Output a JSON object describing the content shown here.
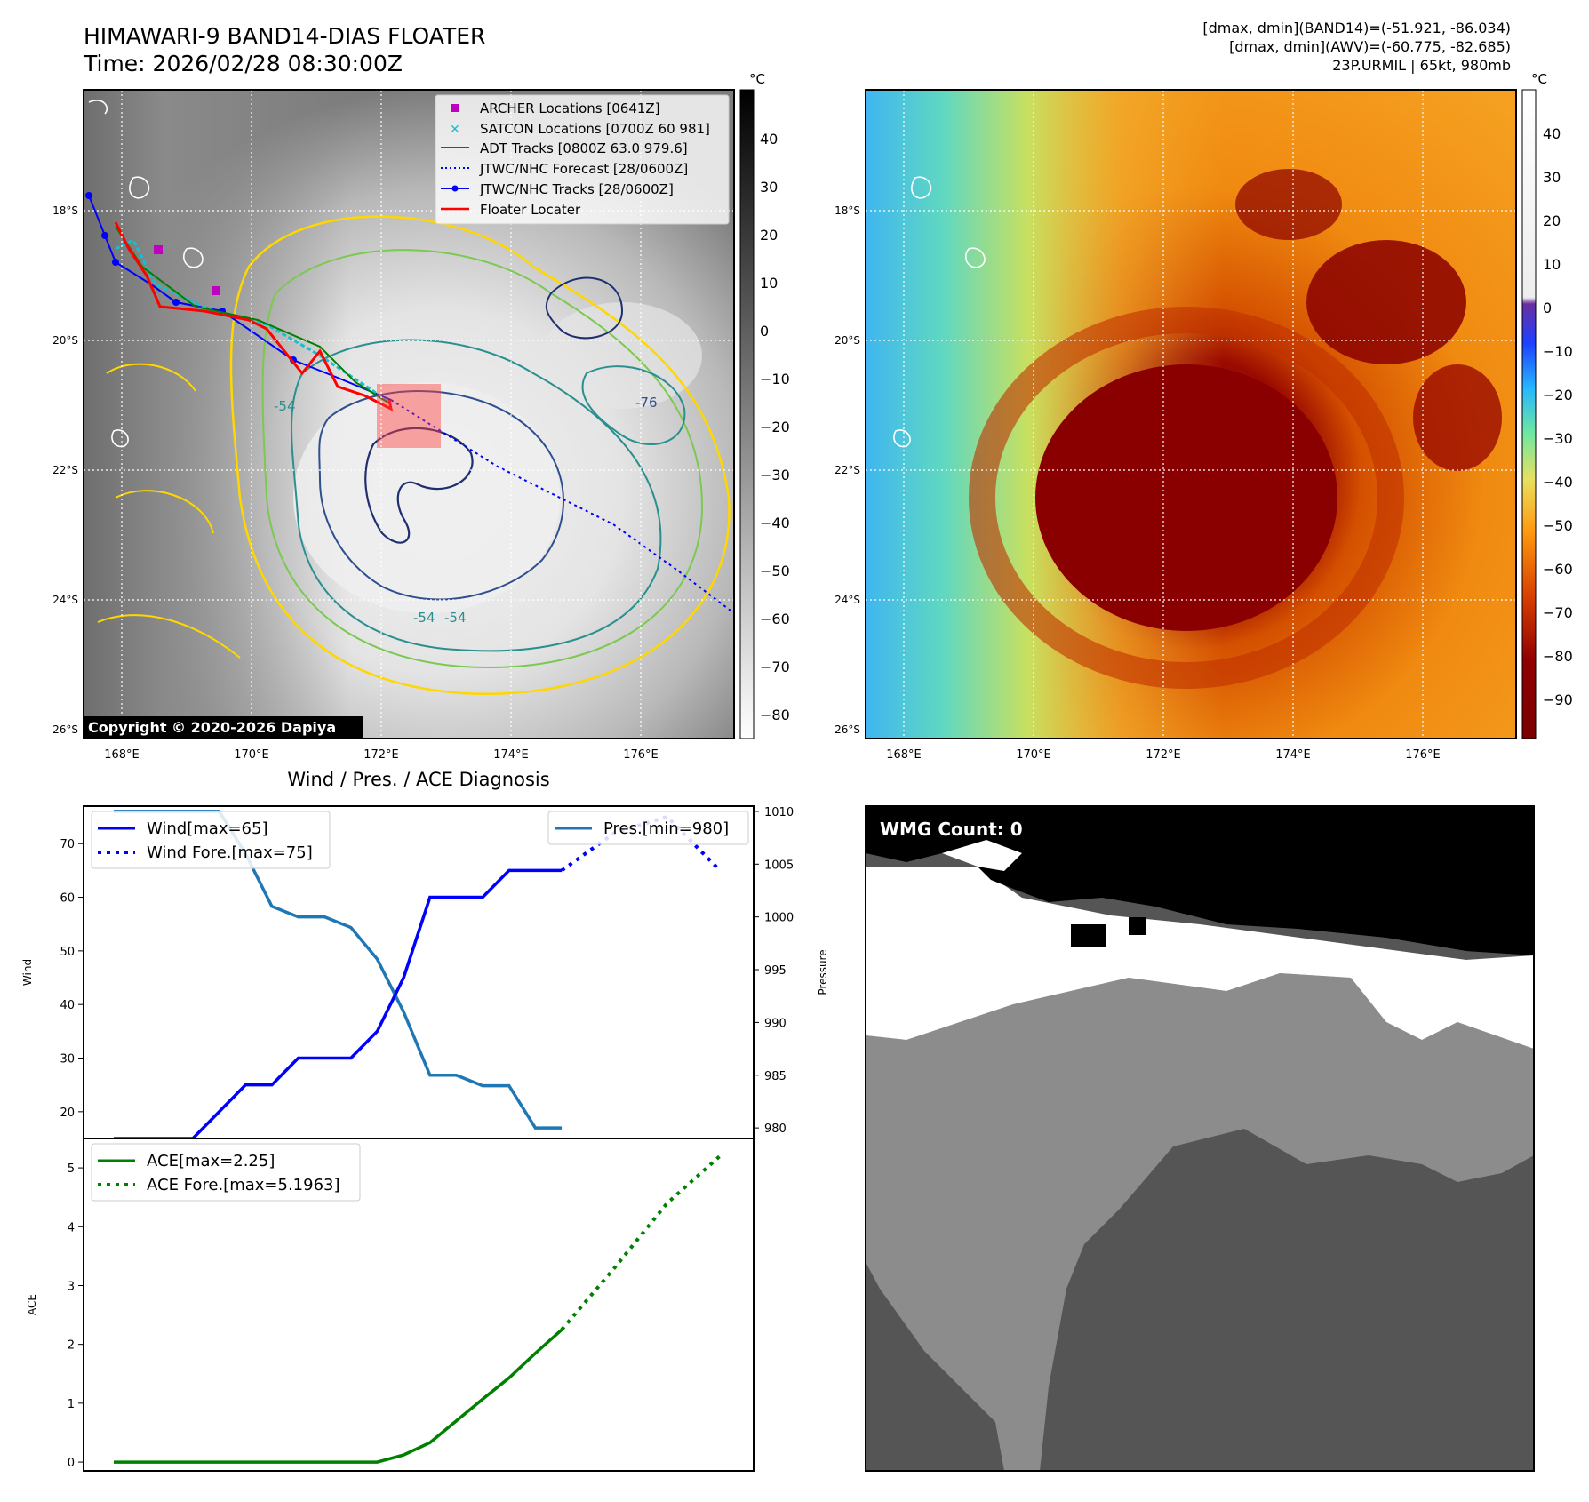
{
  "header": {
    "title": "HIMAWARI-9 BAND14-DIAS FLOATER",
    "time": "Time: 2026/02/28 08:30:00Z",
    "stats_band14": "[dmax, dmin](BAND14)=(-51.921, -86.034)",
    "stats_awv": "[dmax, dmin](AWV)=(-60.775, -82.685)",
    "storm": "23P.URMIL | 65kt, 980mb"
  },
  "map_axes": {
    "lat_labels": [
      "18°S",
      "20°S",
      "22°S",
      "24°S",
      "26°S"
    ],
    "lon_labels": [
      "168°E",
      "170°E",
      "172°E",
      "174°E",
      "176°E"
    ],
    "copyright": "Copyright © 2020-2026 Dapiya"
  },
  "legend": {
    "archer": "ARCHER Locations [0641Z]",
    "satcon": "SATCON Locations [0700Z 60 981]",
    "adt": "ADT Tracks [0800Z 63.0 979.6]",
    "jtwc_forecast": "JTWC/NHC Forecast [28/0600Z]",
    "jtwc_tracks": "JTWC/NHC Tracks [28/0600Z]",
    "floater": "Floater Locater"
  },
  "colorbar_gray": {
    "unit": "°C",
    "ticks": [
      "40",
      "30",
      "20",
      "10",
      "0",
      "−10",
      "−20",
      "−30",
      "−40",
      "−50",
      "−60",
      "−70",
      "−80"
    ]
  },
  "colorbar_color": {
    "unit": "°C",
    "ticks": [
      "40",
      "30",
      "20",
      "10",
      "0",
      "−10",
      "−20",
      "−30",
      "−40",
      "−50",
      "−60",
      "−70",
      "−80",
      "−90"
    ]
  },
  "contour_labels": [
    "-54",
    "-54",
    "-76",
    "-54"
  ],
  "wmg": {
    "label": "WMG Count: 0"
  },
  "colors": {
    "wind": "#0000ff",
    "pressure": "#1f77b4",
    "ace": "#008000",
    "track_red": "#ff0000",
    "archer": "#bf00bf",
    "satcon": "#17becf"
  },
  "chart_data": [
    {
      "type": "line",
      "title": "Wind / Pres. / ACE Diagnosis",
      "ylabel": "Wind",
      "y2label": "Pressure",
      "ylim": [
        15,
        77
      ],
      "y2lim": [
        979,
        1010.5
      ],
      "yticks": [
        20,
        30,
        40,
        50,
        60,
        70
      ],
      "y2ticks": [
        980,
        985,
        990,
        995,
        1000,
        1005,
        1010
      ],
      "x": [
        0,
        1,
        2,
        3,
        4,
        5,
        6,
        7,
        8,
        9,
        10,
        11,
        12,
        13,
        14,
        15,
        16,
        17,
        18,
        19,
        20,
        21,
        22,
        23
      ],
      "series": [
        {
          "name": "Wind[max=65]",
          "axis": "left",
          "style": "solid",
          "x": [
            0,
            1,
            2,
            3,
            4,
            5,
            6,
            7,
            8,
            9,
            10,
            11,
            12,
            13,
            14,
            15,
            16,
            17
          ],
          "values": [
            15,
            15,
            15,
            15,
            20,
            25,
            25,
            30,
            30,
            30,
            35,
            45,
            60,
            60,
            60,
            65,
            65,
            65
          ]
        },
        {
          "name": "Wind Fore.[max=75]",
          "axis": "left",
          "style": "dotted",
          "x": [
            17,
            19,
            21,
            23
          ],
          "values": [
            65,
            72,
            75,
            65
          ]
        },
        {
          "name": "Pres.[min=980]",
          "axis": "right",
          "style": "solid",
          "x": [
            0,
            1,
            2,
            3,
            4,
            5,
            6,
            7,
            8,
            9,
            10,
            11,
            12,
            13,
            14,
            15,
            16,
            17
          ],
          "values": [
            1010,
            1010,
            1010,
            1010,
            1010,
            1006,
            1001,
            1000,
            1000,
            999,
            996,
            991,
            985,
            985,
            984,
            984,
            980,
            980
          ]
        }
      ]
    },
    {
      "type": "line",
      "ylabel": "ACE",
      "ylim": [
        -0.15,
        5.5
      ],
      "yticks": [
        0,
        1,
        2,
        3,
        4,
        5
      ],
      "series": [
        {
          "name": "ACE[max=2.25]",
          "style": "solid",
          "x": [
            0,
            10,
            11,
            12,
            13,
            14,
            15,
            16,
            17
          ],
          "values": [
            0,
            0,
            0.12,
            0.33,
            0.7,
            1.07,
            1.43,
            1.85,
            2.25
          ]
        },
        {
          "name": "ACE Fore.[max=5.1963]",
          "style": "dotted",
          "x": [
            17,
            19,
            21,
            23
          ],
          "values": [
            2.25,
            3.3,
            4.4,
            5.2
          ]
        }
      ]
    }
  ]
}
